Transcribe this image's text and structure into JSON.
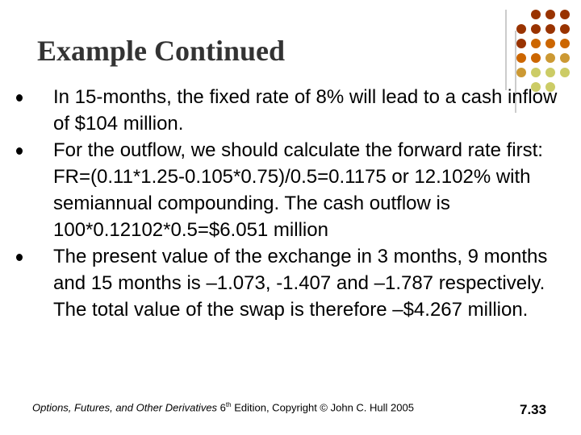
{
  "title": "Example Continued",
  "bullets": [
    "In 15-months, the fixed rate of 8% will lead to a cash inflow of $104 million.",
    "For the outflow, we should calculate the forward rate first: FR=(0.11*1.25-0.105*0.75)/0.5=0.1175 or 12.102% with semiannual compounding. The cash outflow is 100*0.12102*0.5=$6.051 million",
    "The present value of the exchange in 3 months, 9 months and 15 months is –1.073, -1.407 and –1.787 respectively. The total value of the swap is therefore –$4.267 million."
  ],
  "footer": {
    "book": "Options, Futures, and Other Derivatives",
    "edition_number": "6",
    "edition_suffix": "th",
    "rest": "Edition, Copyright © John C. Hull 2005"
  },
  "page_number": "7.33"
}
